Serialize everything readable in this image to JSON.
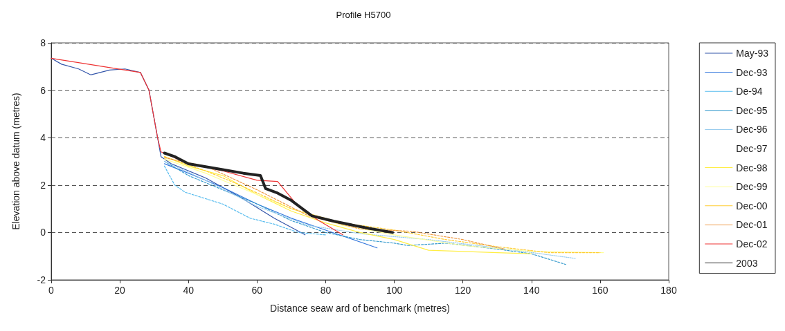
{
  "chart_data": {
    "type": "line",
    "title": "Profile H5700",
    "xlabel": "Distance seaw ard of benchmark (metres)",
    "ylabel": "Elevation above datum (metres)",
    "xlim": [
      0,
      180
    ],
    "xticks": [
      0,
      20,
      40,
      60,
      80,
      100,
      120,
      140,
      160,
      180
    ],
    "ylim": [
      -2,
      8
    ],
    "yticks": [
      -2,
      0,
      2,
      4,
      6,
      8
    ],
    "grid": "y",
    "legend": "right",
    "marker": "none",
    "series": [
      {
        "name": "May-93",
        "color": "#3355aa",
        "line_style": "solid",
        "x": [
          0,
          3,
          8,
          11.5,
          17,
          21.5,
          26,
          28.5,
          31,
          32,
          35,
          45,
          55,
          65,
          74
        ],
        "values": [
          7.35,
          7.1,
          6.9,
          6.65,
          6.85,
          6.9,
          6.75,
          6.0,
          4.0,
          3.2,
          2.9,
          2.3,
          1.5,
          0.6,
          -0.1
        ]
      },
      {
        "name": "Dec-93",
        "color": "#3377dd",
        "line_style": "solid",
        "x": [
          33,
          40,
          50,
          60,
          70,
          80,
          95
        ],
        "values": [
          2.9,
          2.5,
          1.9,
          1.2,
          0.6,
          0.1,
          -0.65
        ]
      },
      {
        "name": "De-94",
        "color": "#55bbee",
        "line_style": "dashed",
        "x": [
          33,
          36,
          39,
          50,
          58,
          65,
          72,
          80
        ],
        "values": [
          2.8,
          2.0,
          1.7,
          1.2,
          0.6,
          0.35,
          0.0,
          -0.1
        ]
      },
      {
        "name": "Dec-95",
        "color": "#3399cc",
        "line_style": "dashed",
        "x": [
          33,
          40,
          50,
          60,
          70,
          80,
          90,
          100,
          104,
          115,
          130,
          140,
          150
        ],
        "values": [
          3.0,
          2.4,
          1.8,
          1.2,
          0.5,
          0.0,
          -0.3,
          -0.45,
          -0.55,
          -0.45,
          -0.7,
          -0.9,
          -1.35
        ]
      },
      {
        "name": "Dec-96",
        "color": "#99ccee",
        "line_style": "dotted",
        "x": [
          33,
          45,
          60,
          75,
          90,
          110,
          130,
          153
        ],
        "values": [
          3.0,
          2.2,
          1.1,
          0.3,
          -0.05,
          -0.3,
          -0.65,
          -1.1
        ]
      },
      {
        "name": "Dec-97"
      },
      {
        "name": "Dec-98",
        "color": "#ffee44",
        "line_style": "solid",
        "x": [
          33,
          40,
          50,
          60,
          70,
          80,
          90,
          100,
          110,
          130,
          140
        ],
        "values": [
          3.2,
          2.8,
          2.4,
          1.6,
          0.9,
          0.4,
          0.0,
          -0.3,
          -0.75,
          -0.85,
          -0.9
        ]
      },
      {
        "name": "Dec-99",
        "color": "#ffff99",
        "line_style": "solid",
        "x": [
          33,
          45,
          55,
          70,
          85,
          100,
          120,
          140,
          161
        ],
        "values": [
          3.1,
          2.5,
          1.9,
          1.0,
          0.3,
          -0.1,
          -0.55,
          -0.8,
          -0.85
        ]
      },
      {
        "name": "Dec-00",
        "color": "#ffcc33",
        "line_style": "dashed",
        "x": [
          33,
          45,
          55,
          70,
          85,
          100,
          115,
          130,
          145,
          160
        ],
        "values": [
          3.2,
          2.6,
          2.0,
          1.0,
          0.4,
          0.1,
          -0.3,
          -0.6,
          -0.85,
          -0.85
        ]
      },
      {
        "name": "Dec-01",
        "color": "#ee9944",
        "line_style": "dashed",
        "x": [
          33,
          45,
          60,
          75,
          90,
          105,
          120,
          132
        ],
        "values": [
          3.15,
          2.8,
          1.8,
          0.7,
          0.15,
          0.05,
          -0.3,
          -0.7
        ]
      },
      {
        "name": "Dec-02",
        "color": "#ee3333",
        "line_style": "solid",
        "x": [
          0,
          26,
          28.5,
          31,
          32,
          40,
          50,
          60,
          66,
          72,
          78,
          85
        ],
        "values": [
          7.35,
          6.75,
          6.0,
          4.0,
          3.4,
          2.9,
          2.6,
          2.2,
          2.15,
          1.1,
          0.5,
          -0.1
        ]
      },
      {
        "name": "2003",
        "color": "#222222",
        "line_style": "solid",
        "x": [
          33,
          36,
          40,
          50,
          56,
          61,
          62.5,
          66,
          70,
          76,
          82.5,
          92.6,
          99.5
        ],
        "values": [
          3.35,
          3.2,
          2.9,
          2.65,
          2.5,
          2.4,
          1.85,
          1.66,
          1.35,
          0.7,
          0.47,
          0.17,
          0.0
        ]
      }
    ]
  }
}
